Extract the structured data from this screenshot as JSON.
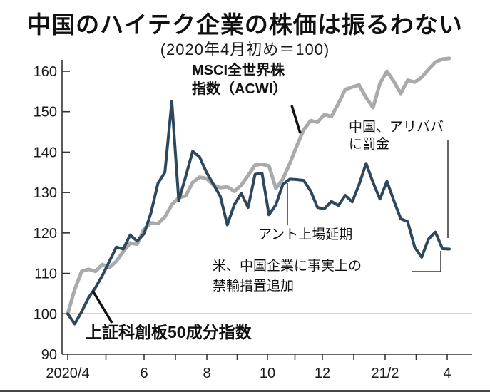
{
  "header": {
    "title": "中国のハイテク企業の株価は振るわない",
    "subtitle": "(2020年4月初め＝100)"
  },
  "annotations": {
    "msci": {
      "line1": "MSCI全世界株",
      "line2": "指数（ACWI）"
    },
    "alibaba": {
      "line1": "中国、アリババ",
      "line2": "に罰金"
    },
    "ant": {
      "text": "アント上場延期"
    },
    "ban": {
      "line1": "米、中国企業に事実上の",
      "line2": "禁輸措置追加"
    },
    "star": {
      "text": "上証科創板50成分指数"
    }
  },
  "chart_data": {
    "type": "line",
    "title": "中国のハイテク企業の株価は振るわない",
    "subtitle": "(2020年4月初め＝100)",
    "x_axis": {
      "labels": [
        "2020/4",
        "6",
        "8",
        "10",
        "12",
        "21/2",
        "4"
      ],
      "minor_ticks_between_labels": true
    },
    "y_axis": {
      "min": 90,
      "max": 160,
      "ticks": [
        90,
        100,
        110,
        120,
        130,
        140,
        150,
        160
      ],
      "reference_line_value": 100
    },
    "legend_position": "annotated-on-plot",
    "grid": "only 100 baseline",
    "x_unit": "weekly points, Apr 2020 - Apr 2021",
    "series": [
      {
        "name": "MSCI全世界株指数（ACWI）",
        "color": "#a9aaac",
        "stroke_width": 5,
        "values": [
          100,
          106,
          110.5,
          111,
          110.5,
          112.2,
          111.4,
          113,
          115.4,
          117.5,
          117.2,
          121,
          122.5,
          122.3,
          124,
          127,
          128.7,
          129.2,
          132.5,
          133.8,
          133.5,
          131.8,
          131.2,
          131.4,
          130.3,
          131.8,
          134.2,
          136.8,
          137,
          136.6,
          131,
          133.3,
          137.2,
          141.5,
          145.5,
          147.8,
          147.4,
          149.3,
          148.8,
          152,
          155.5,
          156.1,
          156.6,
          153.5,
          151,
          157,
          160,
          157.5,
          154.5,
          157.8,
          157.3,
          158.5,
          160.5,
          162.3,
          163,
          163.2
        ]
      },
      {
        "name": "上証科創板50成分指数",
        "color": "#2d485c",
        "stroke_width": 4,
        "values": [
          100,
          97.5,
          100.5,
          104,
          106.5,
          109.5,
          113,
          116.5,
          116,
          119.5,
          118,
          119.8,
          125,
          132.3,
          135,
          152.5,
          128,
          134,
          140.2,
          138.8,
          135,
          132,
          129,
          122,
          127,
          129.8,
          126.3,
          134.5,
          134.8,
          124.5,
          127,
          132,
          133.3,
          133.2,
          133,
          130.4,
          126.3,
          126,
          127.8,
          126.8,
          129.3,
          127.7,
          132,
          137.2,
          132.5,
          128.4,
          132.8,
          128,
          123.5,
          122.8,
          116.5,
          114,
          118.5,
          120.2,
          116.1,
          116
        ]
      }
    ]
  }
}
